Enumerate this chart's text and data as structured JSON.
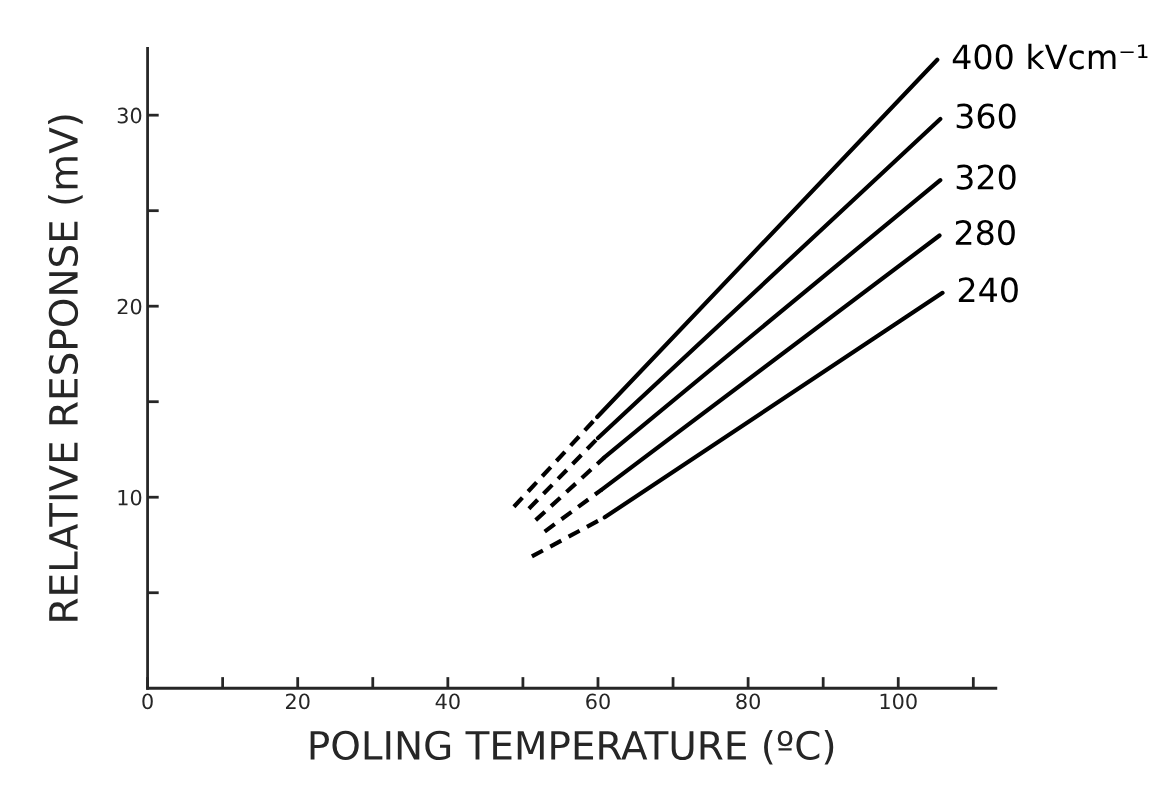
{
  "chart_data": {
    "type": "line",
    "xlabel": "POLING TEMPERATURE (ºC)",
    "ylabel": "RELATIVE RESPONSE (mV)",
    "xlim": [
      0,
      113
    ],
    "ylim": [
      0,
      33.5
    ],
    "xticks": [
      0,
      {
        "value": 10,
        "label": null
      },
      20,
      {
        "value": 30,
        "label": null
      },
      40,
      {
        "value": 50,
        "label": null
      },
      60,
      {
        "value": 70,
        "label": null
      },
      80,
      {
        "value": 90,
        "label": null
      },
      100,
      {
        "value": 110,
        "label": null
      }
    ],
    "yticks": [
      {
        "value": 5,
        "label": null
      },
      10,
      {
        "value": 15,
        "label": null
      },
      20,
      {
        "value": 25,
        "label": null
      },
      30
    ],
    "grid": false,
    "legend": false,
    "marker": "none",
    "series": [
      {
        "color": "#000000",
        "line_style": "dashed",
        "x": [
          48.8,
          59.9
        ],
        "values": [
          9.5,
          14.2
        ]
      },
      {
        "name": "400 kVcm⁻¹",
        "color": "#000000",
        "line_style": "solid",
        "x": [
          59.9,
          105.2
        ],
        "values": [
          14.2,
          32.9
        ]
      },
      {
        "color": "#000000",
        "line_style": "dashed",
        "x": [
          50.8,
          60.0
        ],
        "values": [
          9.4,
          13.1
        ]
      },
      {
        "name": "360",
        "color": "#000000",
        "line_style": "solid",
        "x": [
          60.0,
          105.6
        ],
        "values": [
          13.1,
          29.8
        ]
      },
      {
        "color": "#000000",
        "line_style": "dashed",
        "x": [
          51.7,
          60.9
        ],
        "values": [
          8.8,
          12.1
        ]
      },
      {
        "name": "320",
        "color": "#000000",
        "line_style": "solid",
        "x": [
          60.9,
          105.6
        ],
        "values": [
          12.1,
          26.6
        ]
      },
      {
        "color": "#000000",
        "line_style": "dashed",
        "x": [
          52.9,
          60.5
        ],
        "values": [
          8.2,
          10.4
        ]
      },
      {
        "name": "280",
        "color": "#000000",
        "line_style": "solid",
        "x": [
          60.5,
          105.5
        ],
        "values": [
          10.4,
          23.7
        ]
      },
      {
        "color": "#000000",
        "line_style": "dashed",
        "x": [
          51.2,
          60.9
        ],
        "values": [
          6.9,
          8.95
        ]
      },
      {
        "name": "240",
        "color": "#000000",
        "line_style": "solid",
        "x": [
          60.9,
          105.9
        ],
        "values": [
          8.95,
          20.7
        ]
      }
    ]
  }
}
